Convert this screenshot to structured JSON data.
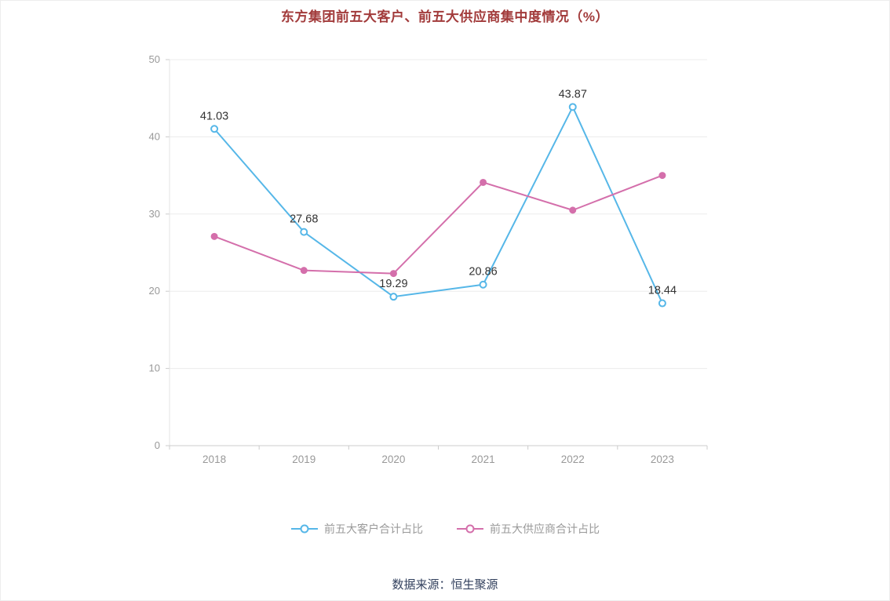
{
  "chart_data": {
    "type": "line",
    "title": "东方集团前五大客户、前五大供应商集中度情况（%）",
    "categories": [
      "2018",
      "2019",
      "2020",
      "2021",
      "2022",
      "2023"
    ],
    "series": [
      {
        "name": "前五大客户合计占比",
        "color": "#56b7e8",
        "marker": "open",
        "values": [
          41.03,
          27.68,
          19.29,
          20.86,
          43.87,
          18.44
        ],
        "labels": [
          "41.03",
          "27.68",
          "19.29",
          "20.86",
          "43.87",
          "18.44"
        ]
      },
      {
        "name": "前五大供应商合计占比",
        "color": "#d46fab",
        "marker": "filled",
        "values": [
          27.1,
          22.7,
          22.3,
          34.1,
          30.5,
          35.0
        ],
        "labels": []
      }
    ],
    "xlabel": "",
    "ylabel": "",
    "ylim": [
      0,
      50
    ],
    "yticks": [
      0,
      10,
      20,
      30,
      40,
      50
    ],
    "grid": true,
    "legend_position": "bottom",
    "title_color": "#a23b3b",
    "axis_text_color": "#999999",
    "label_text_color": "#333333",
    "grid_color": "#ececec",
    "axis_line_color": "#cccccc"
  },
  "footer": {
    "source": "数据来源：恒生聚源"
  }
}
